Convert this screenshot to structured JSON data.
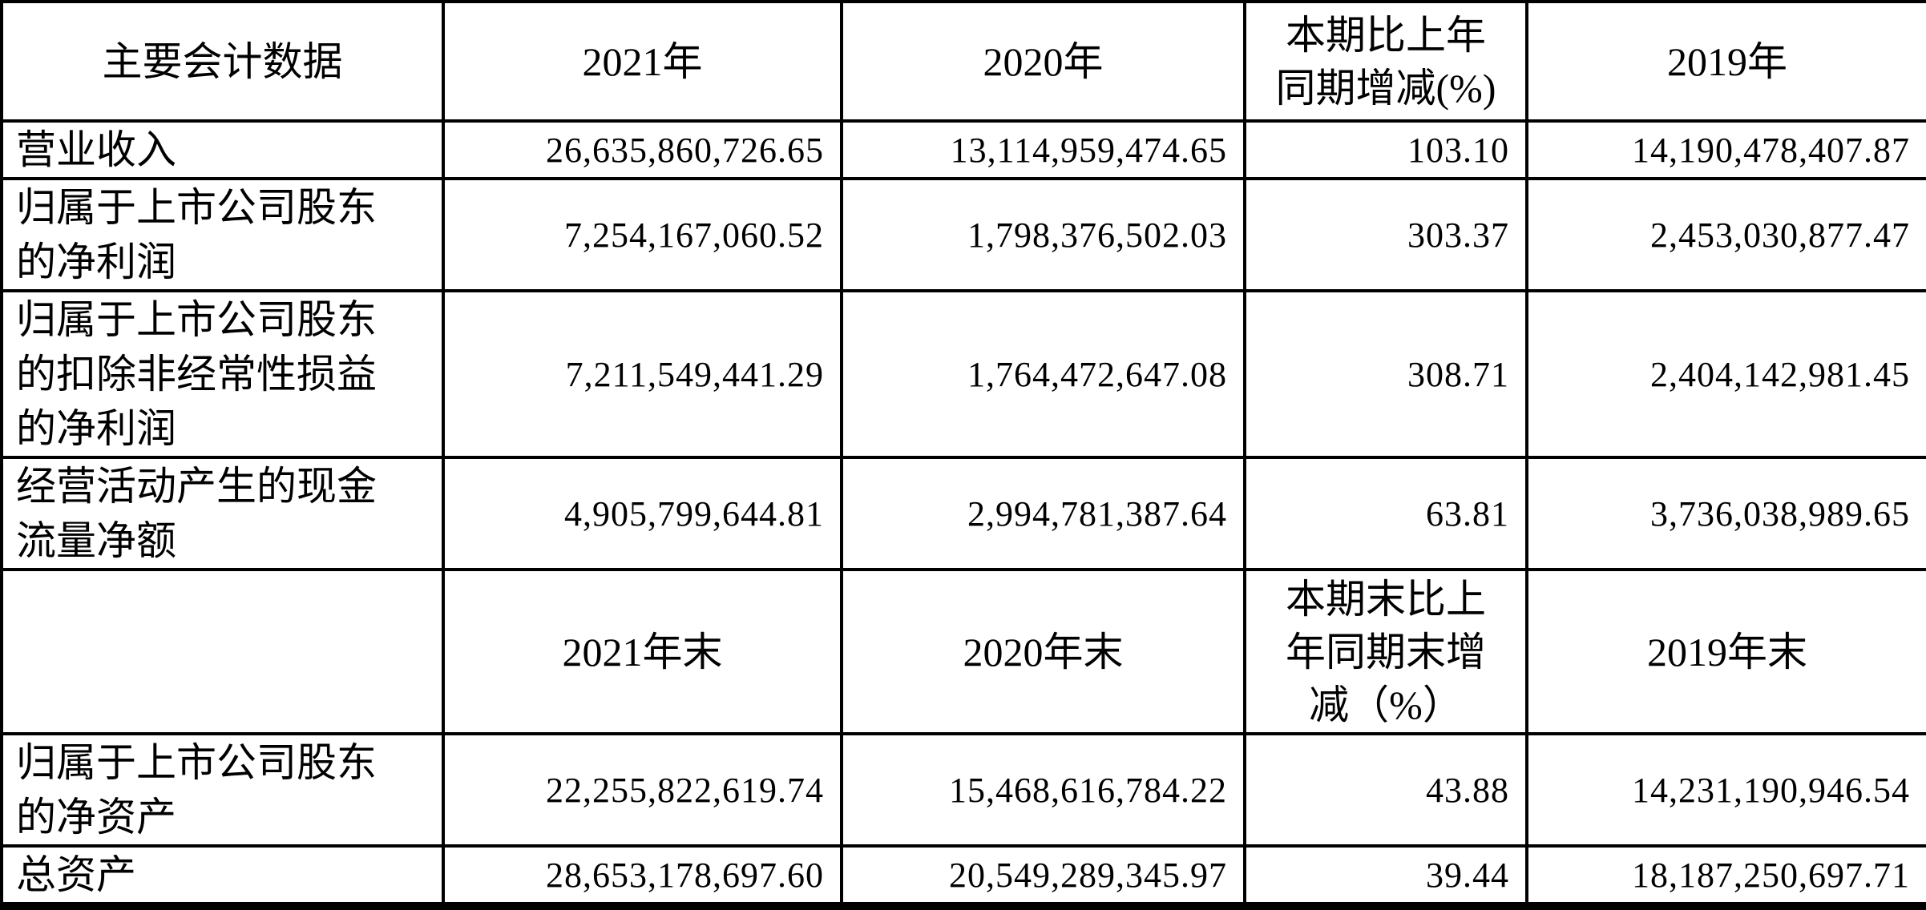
{
  "colors": {
    "grid": "#000000",
    "text": "#000000",
    "background": "#ffffff"
  },
  "table": {
    "title_cell": "主要会计数据",
    "rows": [
      {
        "type": "header",
        "cells": [
          [
            "主要会计数据"
          ],
          [
            "2021年"
          ],
          [
            "2020年"
          ],
          [
            "本期比上年",
            "同期增减(%)"
          ],
          [
            "2019年"
          ]
        ]
      },
      {
        "type": "data",
        "cells": [
          [
            "营业收入"
          ],
          [
            "26,635,860,726.65"
          ],
          [
            "13,114,959,474.65"
          ],
          [
            "103.10"
          ],
          [
            "14,190,478,407.87"
          ]
        ]
      },
      {
        "type": "data",
        "cells": [
          [
            "归属于上市公司股东",
            "的净利润"
          ],
          [
            "7,254,167,060.52"
          ],
          [
            "1,798,376,502.03"
          ],
          [
            "303.37"
          ],
          [
            "2,453,030,877.47"
          ]
        ]
      },
      {
        "type": "data",
        "cells": [
          [
            "归属于上市公司股东",
            "的扣除非经常性损益",
            "的净利润"
          ],
          [
            "7,211,549,441.29"
          ],
          [
            "1,764,472,647.08"
          ],
          [
            "308.71"
          ],
          [
            "2,404,142,981.45"
          ]
        ]
      },
      {
        "type": "data",
        "cells": [
          [
            "经营活动产生的现金",
            "流量净额"
          ],
          [
            "4,905,799,644.81"
          ],
          [
            "2,994,781,387.64"
          ],
          [
            "63.81"
          ],
          [
            "3,736,038,989.65"
          ]
        ]
      },
      {
        "type": "header",
        "cells": [
          [
            ""
          ],
          [
            "2021年末"
          ],
          [
            "2020年末"
          ],
          [
            "本期末比上",
            "年同期末增",
            "减（%）"
          ],
          [
            "2019年末"
          ]
        ]
      },
      {
        "type": "data",
        "cells": [
          [
            "归属于上市公司股东",
            "的净资产"
          ],
          [
            "22,255,822,619.74"
          ],
          [
            "15,468,616,784.22"
          ],
          [
            "43.88"
          ],
          [
            "14,231,190,946.54"
          ]
        ]
      },
      {
        "type": "data",
        "cells": [
          [
            "总资产"
          ],
          [
            "28,653,178,697.60"
          ],
          [
            "20,549,289,345.97"
          ],
          [
            "39.44"
          ],
          [
            "18,187,250,697.71"
          ]
        ]
      }
    ]
  }
}
